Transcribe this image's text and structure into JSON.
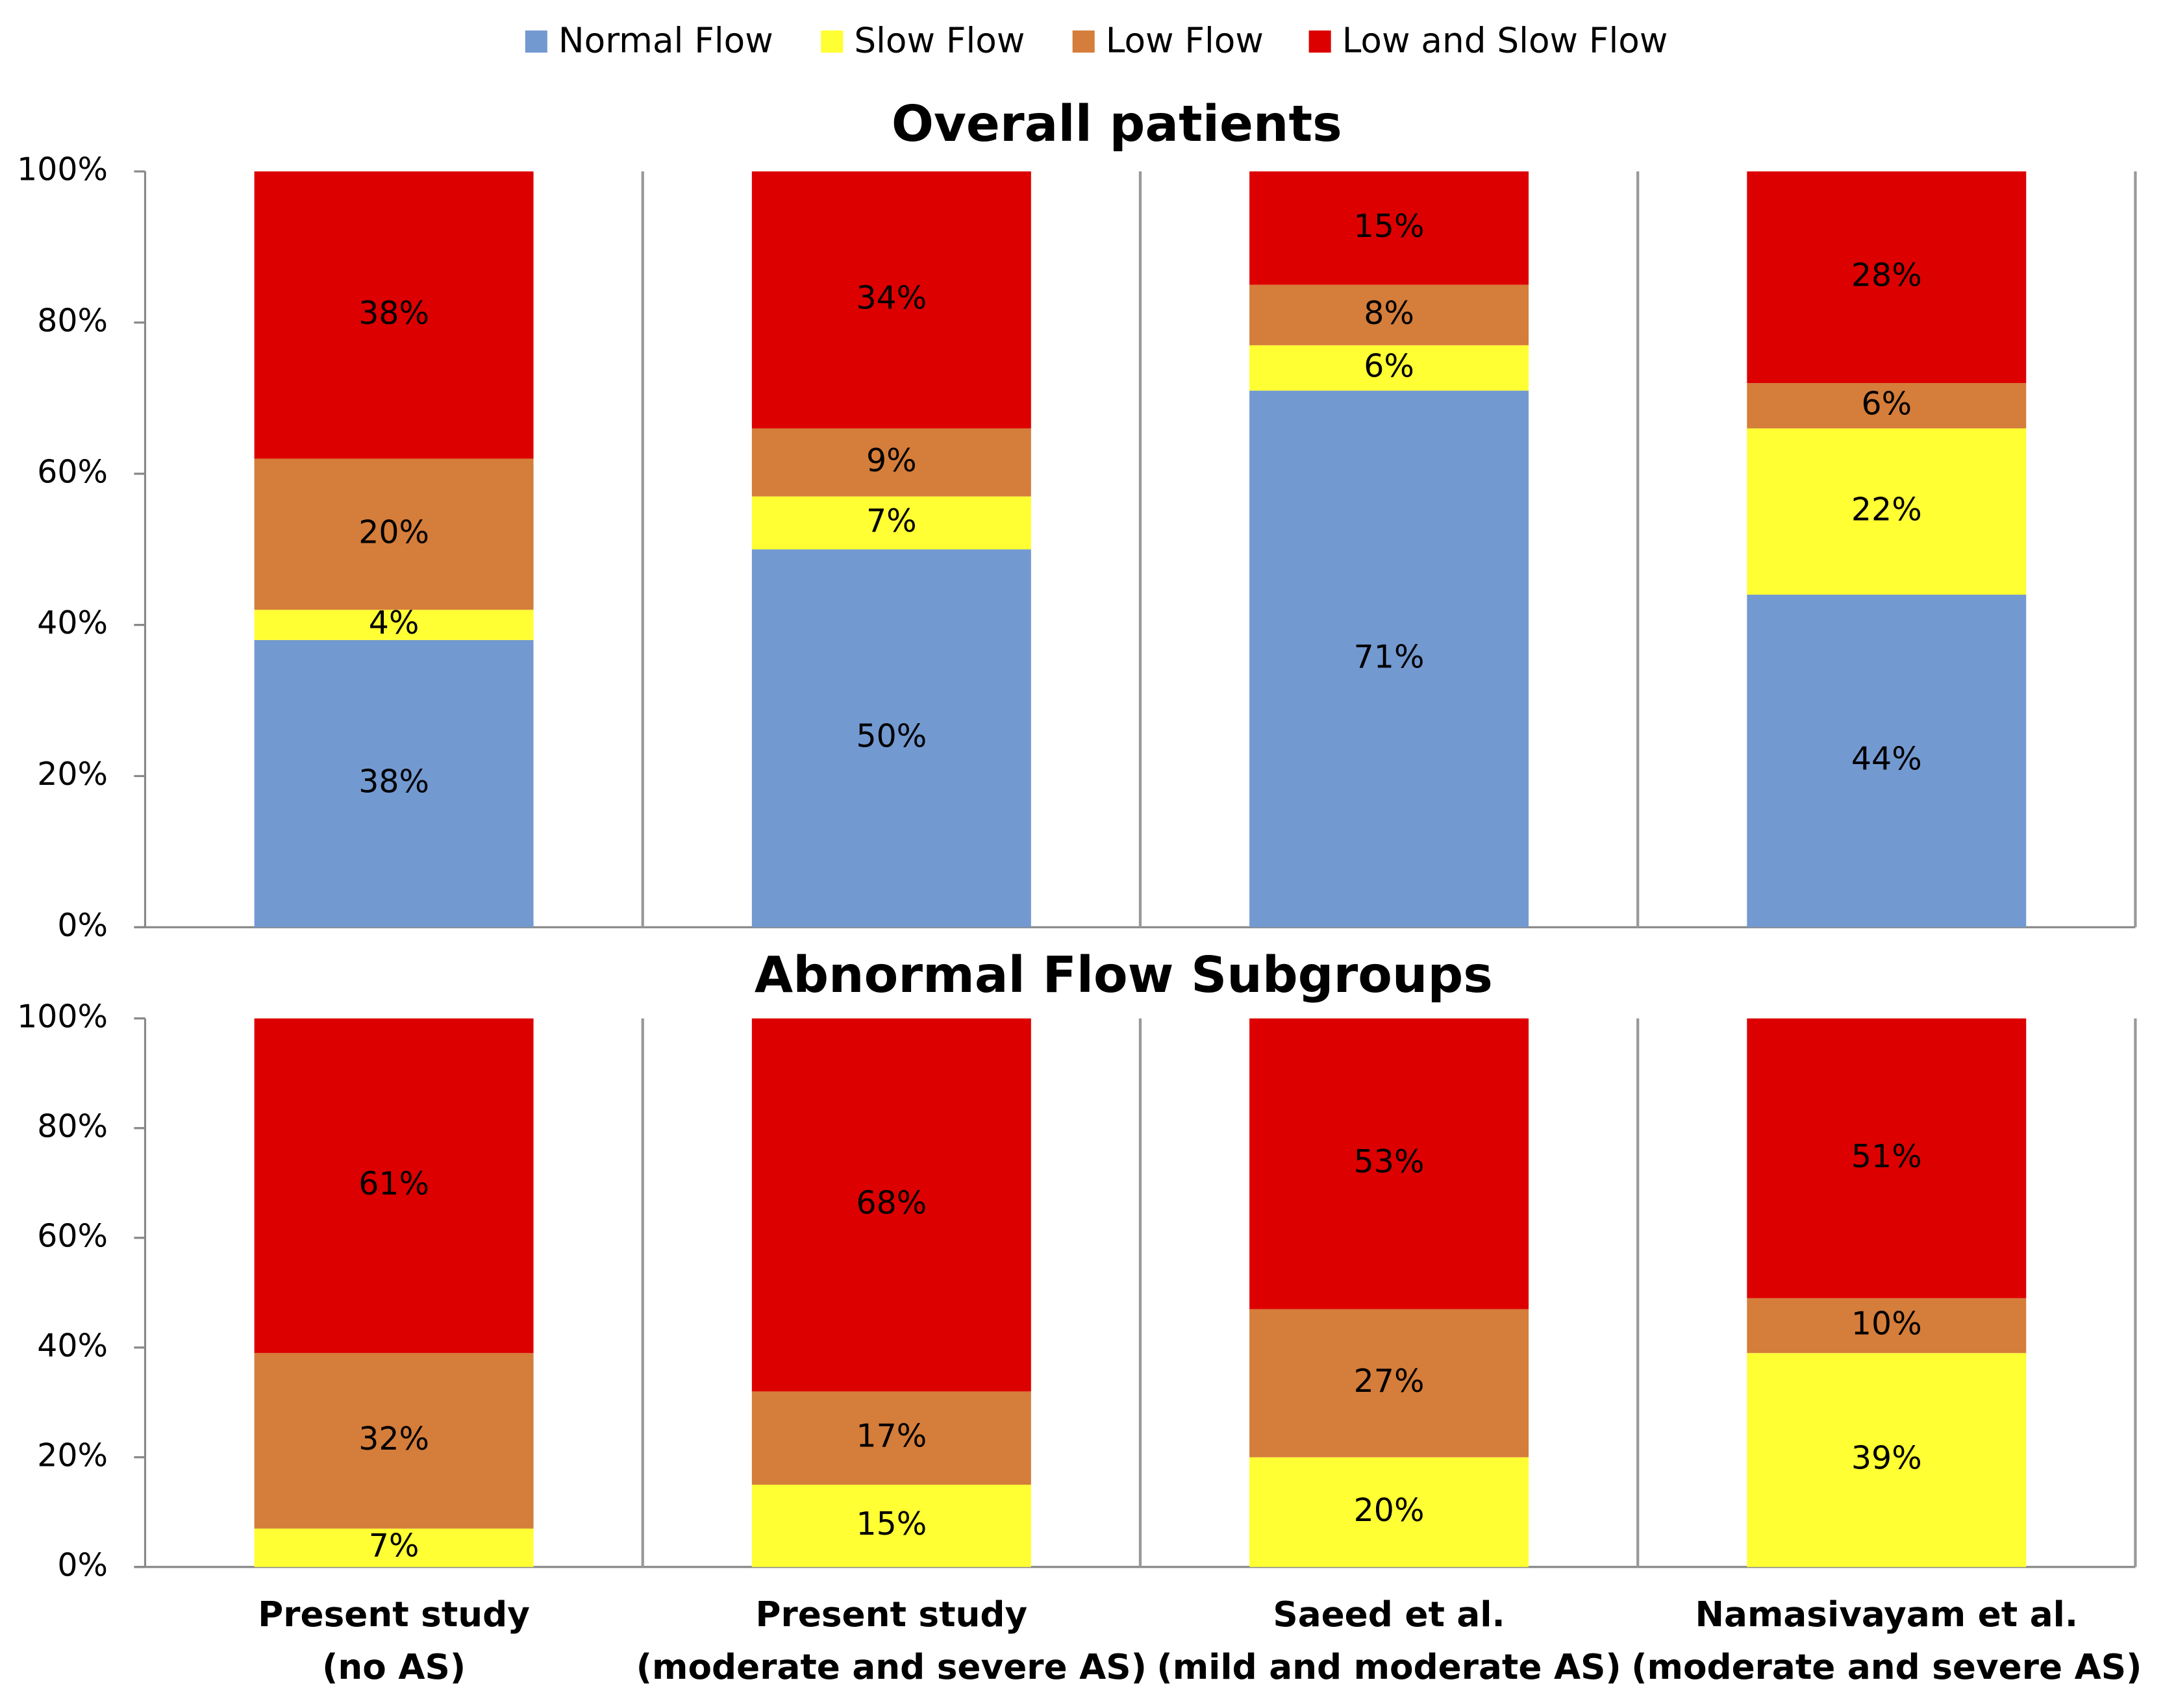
{
  "chart_data": [
    {
      "type": "stacked_bar",
      "title": "Overall patients",
      "categories": [
        null,
        null,
        null,
        null
      ],
      "series": [
        {
          "name": "Normal Flow",
          "color": "#7399d1",
          "values": [
            38,
            50,
            71,
            44
          ],
          "value_labels": [
            "38%",
            "50%",
            "71%",
            "44%"
          ]
        },
        {
          "name": "Slow Flow",
          "color": "#ffff33",
          "values": [
            4,
            7,
            6,
            22
          ],
          "value_labels": [
            "4%",
            "7%",
            "6%",
            "22%"
          ]
        },
        {
          "name": "Low Flow",
          "color": "#d57d3a",
          "values": [
            20,
            9,
            8,
            6
          ],
          "value_labels": [
            "20%",
            "9%",
            "8%",
            "6%"
          ]
        },
        {
          "name": "Low and Slow Flow",
          "color": "#dd0000",
          "values": [
            38,
            34,
            15,
            28
          ],
          "value_labels": [
            "38%",
            "34%",
            "15%",
            "28%"
          ]
        }
      ],
      "ylim": [
        0,
        100
      ],
      "yticks": [
        {
          "value": 0,
          "label": "0%"
        },
        {
          "value": 20,
          "label": "20%"
        },
        {
          "value": 40,
          "label": "40%"
        },
        {
          "value": 60,
          "label": "60%"
        },
        {
          "value": 80,
          "label": "80%"
        },
        {
          "value": 100,
          "label": "100%"
        }
      ],
      "legend": "top"
    },
    {
      "type": "stacked_bar",
      "title": "Abnormal Flow Subgroups",
      "categories": [
        [
          "Present study",
          "(no AS)"
        ],
        [
          "Present study",
          "(moderate and severe AS)"
        ],
        [
          "Saeed et al.",
          "(mild and moderate AS)"
        ],
        [
          "Namasivayam et al.",
          "(moderate and severe AS)"
        ]
      ],
      "series": [
        {
          "color": "#ffff33",
          "values": [
            7,
            15,
            20,
            39
          ],
          "value_labels": [
            "7%",
            "15%",
            "20%",
            "39%"
          ]
        },
        {
          "color": "#d57d3a",
          "values": [
            32,
            17,
            27,
            10
          ],
          "value_labels": [
            "32%",
            "17%",
            "27%",
            "10%"
          ]
        },
        {
          "color": "#dd0000",
          "values": [
            61,
            68,
            53,
            51
          ],
          "value_labels": [
            "61%",
            "68%",
            "53%",
            "51%"
          ]
        }
      ],
      "ylim": [
        0,
        100
      ],
      "yticks": [
        {
          "value": 0,
          "label": "0%"
        },
        {
          "value": 20,
          "label": "20%"
        },
        {
          "value": 40,
          "label": "40%"
        },
        {
          "value": 60,
          "label": "60%"
        },
        {
          "value": 80,
          "label": "80%"
        },
        {
          "value": 100,
          "label": "100%"
        }
      ]
    }
  ]
}
